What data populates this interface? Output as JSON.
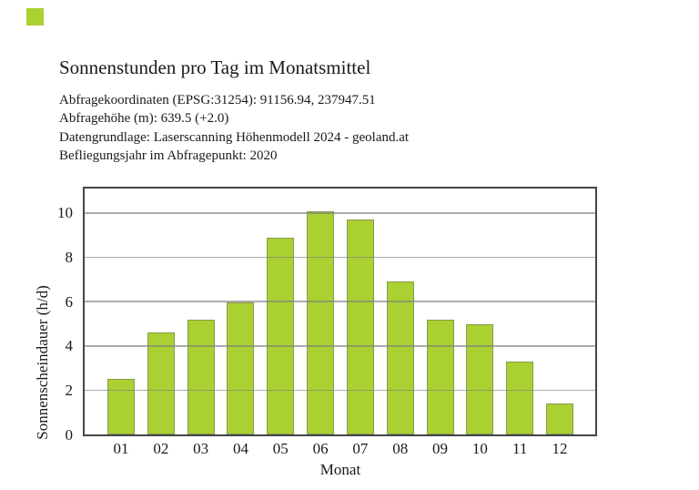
{
  "page": {
    "background": "#ffffff",
    "marker_square": {
      "color": "#aad032"
    },
    "title": "Sonnenstunden pro Tag im Monatsmittel",
    "meta_lines": [
      "Abfragekoordinaten (EPSG:31254): 91156.94, 237947.51",
      "Abfragehöhe (m): 639.5 (+2.0)",
      "Datengrundlage: Laserscanning Höhenmodell 2024 - geoland.at",
      "Befliegungsjahr im Abfragepunkt: 2020"
    ]
  },
  "chart_data": {
    "type": "bar",
    "title": "Sonnenstunden pro Tag im Monatsmittel",
    "categories": [
      "01",
      "02",
      "03",
      "04",
      "05",
      "06",
      "07",
      "08",
      "09",
      "10",
      "11",
      "12"
    ],
    "values": [
      2.5,
      4.6,
      5.2,
      5.95,
      8.9,
      10.1,
      9.7,
      6.9,
      5.2,
      5.0,
      3.3,
      1.4
    ],
    "xlabel": "Monat",
    "ylabel": "Sonnenscheindauer (h/d)",
    "yticks": [
      0,
      2,
      4,
      6,
      8,
      10
    ],
    "ytick_labels": [
      "0",
      "2",
      "4",
      "6",
      "8",
      "10"
    ],
    "ylim": [
      0,
      11.11
    ],
    "grid": true,
    "legend": "none",
    "bar_color": "#aad032",
    "bar_edge_color": "#6e6e6e",
    "gridline_color": "#808080",
    "frame_color": "#454545",
    "text_color": "#1a1a1a"
  }
}
